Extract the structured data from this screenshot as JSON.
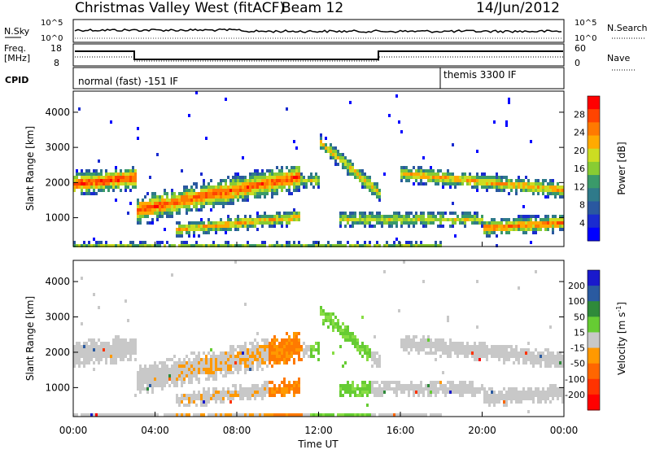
{
  "header": {
    "title": "Christmas Valley West (fitACF)",
    "beam": "Beam 12",
    "date": "14/Jun/2012"
  },
  "top_panel": {
    "left_label": "N.Sky",
    "right_label": "N.Search",
    "left_ticks": [
      "10^5",
      "10^0"
    ],
    "right_ticks": [
      "10^5",
      "10^0"
    ]
  },
  "freq_panel": {
    "left_label_1": "Freq.",
    "left_label_2": "[MHz]",
    "right_label": "Nave",
    "left_ticks": [
      "18",
      "8"
    ],
    "right_ticks": [
      "60",
      "0"
    ]
  },
  "cpid": {
    "label": "CPID",
    "mode1": "normal (fast) -151 IF",
    "mode2": "themis 3300 IF"
  },
  "chart_data": [
    {
      "type": "heatmap",
      "name": "power",
      "ylabel": "Slant Range [km]",
      "y_ticks": [
        1000,
        2000,
        3000,
        4000
      ],
      "ylim": [
        180,
        4600
      ],
      "colorbar_label": "Power [dB]",
      "colorbar_ticks": [
        "28",
        "24",
        "20",
        "16",
        "12",
        "8",
        "4"
      ],
      "colorbar_colors": [
        "#ff0000",
        "#ff4400",
        "#ff7a00",
        "#ffaa00",
        "#ccdd22",
        "#88cc33",
        "#3a9a6a",
        "#2f7a8a",
        "#2a58a0",
        "#1a2bd0",
        "#0000ff"
      ]
    },
    {
      "type": "heatmap",
      "name": "velocity",
      "ylabel": "Slant Range [km]",
      "y_ticks": [
        1000,
        2000,
        3000,
        4000
      ],
      "ylim": [
        180,
        4600
      ],
      "colorbar_label": "Velocity [m s",
      "colorbar_label_sup": "-1",
      "colorbar_label_end": "]",
      "colorbar_ticks": [
        "200",
        "100",
        "50",
        "15",
        "-15",
        "-50",
        "-100",
        "-200"
      ],
      "colorbar_colors": [
        "#1a1acc",
        "#2a5aa0",
        "#2f8a3a",
        "#66cc33",
        "#c8c8c8",
        "#ff9900",
        "#ff6600",
        "#ff3300",
        "#ff0000"
      ]
    }
  ],
  "x_axis": {
    "label": "Time UT",
    "ticks": [
      "00:00",
      "04:00",
      "08:00",
      "12:00",
      "16:00",
      "20:00",
      "00:00"
    ]
  }
}
